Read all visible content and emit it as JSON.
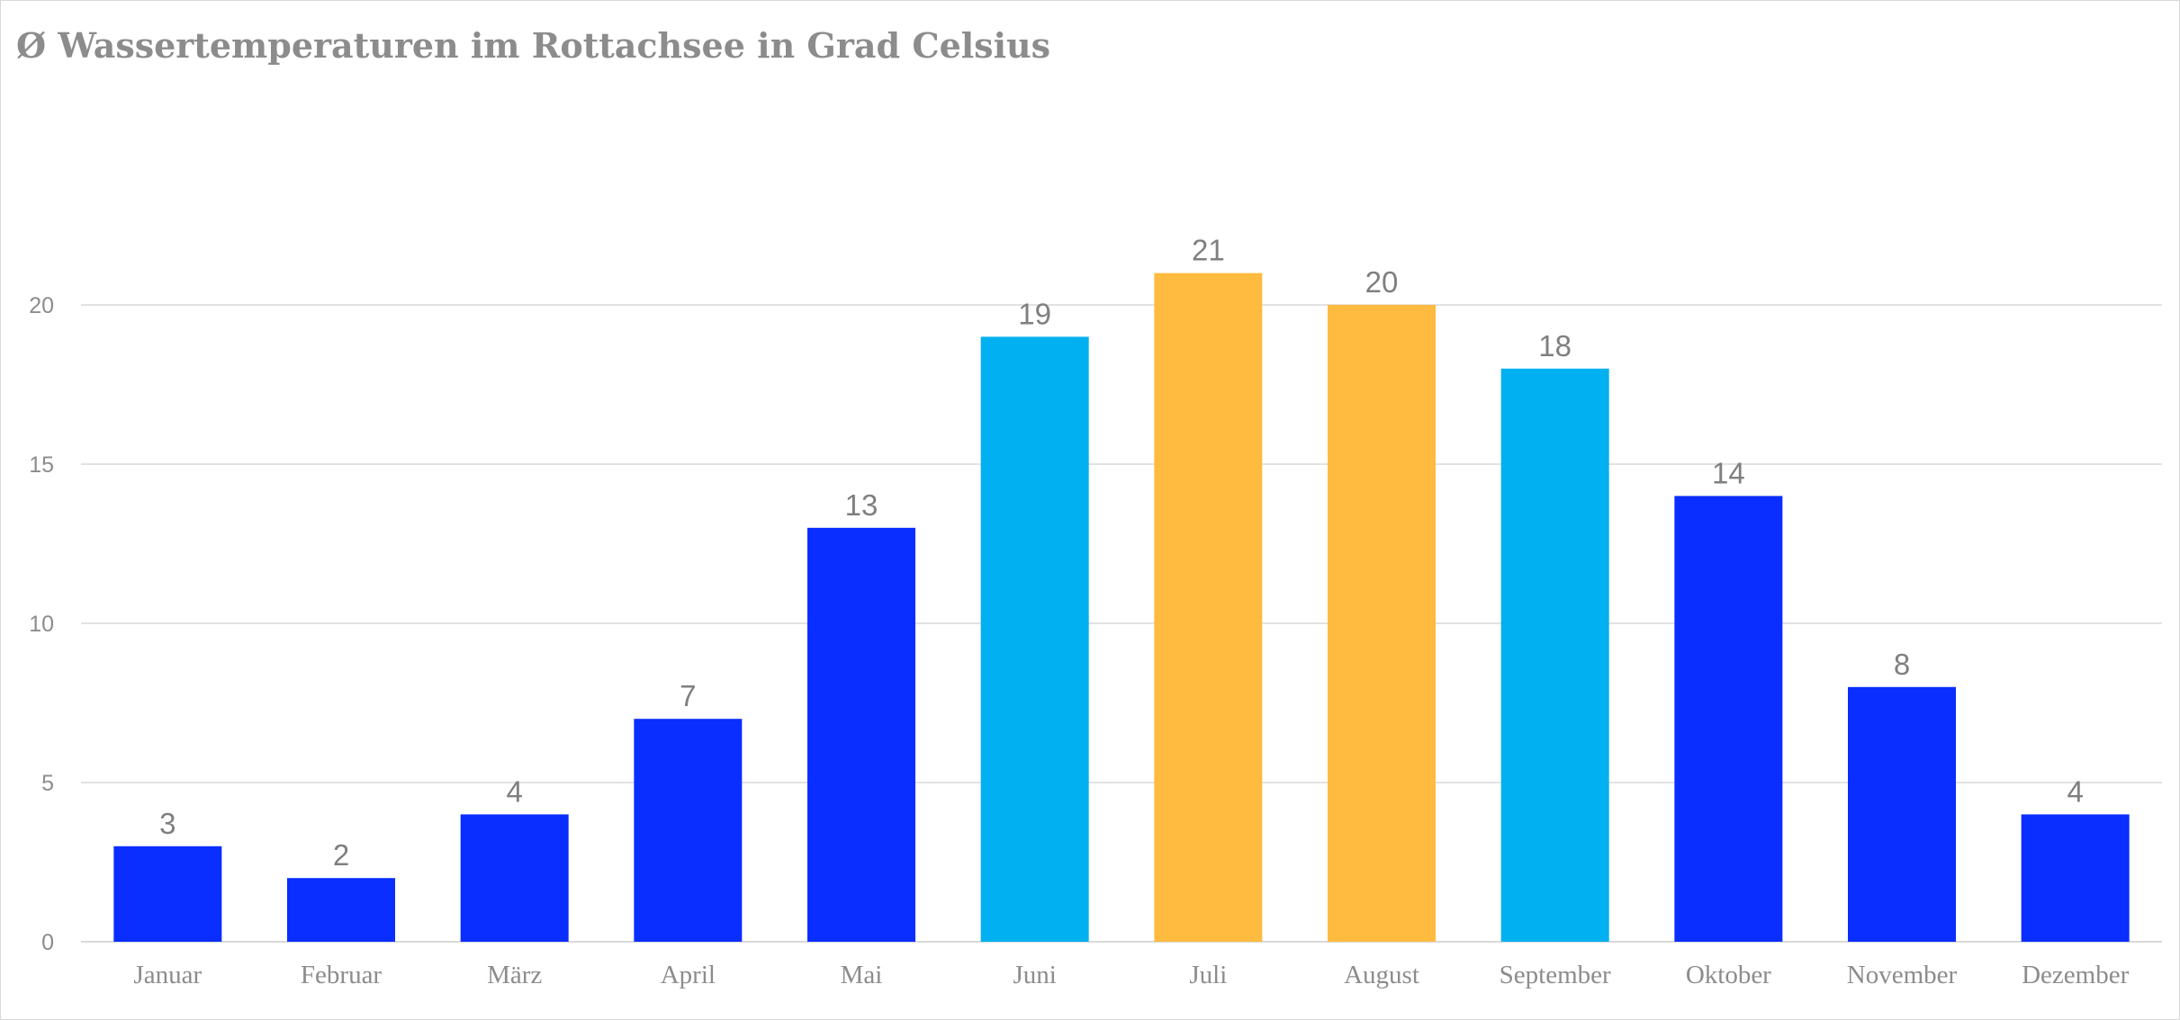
{
  "chart_data": {
    "type": "bar",
    "title": "Ø Wassertemperaturen im Rottachsee in Grad Celsius",
    "xlabel": "",
    "ylabel": "",
    "categories": [
      "Januar",
      "Februar",
      "März",
      "April",
      "Mai",
      "Juni",
      "Juli",
      "August",
      "September",
      "Oktober",
      "November",
      "Dezember"
    ],
    "values": [
      3,
      2,
      4,
      7,
      13,
      19,
      21,
      20,
      18,
      14,
      8,
      4
    ],
    "bar_colors": [
      "#0a2eff",
      "#0a2eff",
      "#0a2eff",
      "#0a2eff",
      "#0a2eff",
      "#00b0f0",
      "#ffbb3f",
      "#ffbb3f",
      "#00b0f0",
      "#0a2eff",
      "#0a2eff",
      "#0a2eff"
    ],
    "ylim": [
      0,
      20
    ],
    "yticks": [
      0,
      5,
      10,
      15,
      20
    ],
    "grid": true,
    "legend": "none",
    "data_labels": true
  }
}
